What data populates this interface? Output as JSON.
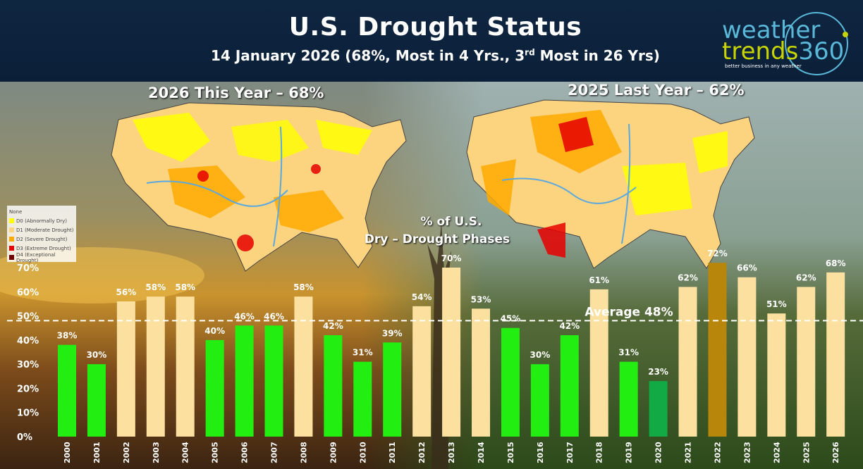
{
  "header": {
    "title": "U.S. Drought Status",
    "subtitle_main": "14 January 2026 (68%, Most in 4 Yrs., 3",
    "subtitle_sup": "rd",
    "subtitle_end": " Most in 26 Yrs)"
  },
  "logo": {
    "line1": "weather",
    "line2": "trends",
    "line2_num": "360",
    "tagline": "better business in any weather"
  },
  "maps": {
    "left_title": "2026 This Year – 68%",
    "right_title": "2025 Last Year – 62%"
  },
  "legend": [
    {
      "label": "None",
      "color": "#ffffff"
    },
    {
      "label": "D0 (Abnormally Dry)",
      "color": "#ffff00"
    },
    {
      "label": "D1 (Moderate Drought)",
      "color": "#fcd37f"
    },
    {
      "label": "D2 (Severe Drought)",
      "color": "#ffaa00"
    },
    {
      "label": "D3 (Extreme Drought)",
      "color": "#e60000"
    },
    {
      "label": "D4 (Exceptional Drought)",
      "color": "#730000"
    }
  ],
  "chart_overlay": {
    "line1": "% of U.S.",
    "line2": "Dry – Drought Phases",
    "average_label": "Average 48%"
  },
  "colors": {
    "above_avg": "#fbe0a0",
    "below_avg": "#22ee11",
    "record_low": "#11aa44",
    "record_high": "#b8860b"
  },
  "chart_data": {
    "type": "bar",
    "title": "% of U.S. Dry – Drought Phases",
    "categories": [
      "2000",
      "2001",
      "2002",
      "2003",
      "2004",
      "2005",
      "2006",
      "2007",
      "2008",
      "2009",
      "2010",
      "2011",
      "2012",
      "2013",
      "2014",
      "2015",
      "2016",
      "2017",
      "2018",
      "2019",
      "2020",
      "2021",
      "2022",
      "2023",
      "2024",
      "2025",
      "2026"
    ],
    "values": [
      38,
      30,
      56,
      58,
      58,
      40,
      46,
      46,
      58,
      42,
      31,
      39,
      54,
      70,
      53,
      45,
      30,
      42,
      61,
      31,
      23,
      62,
      72,
      66,
      51,
      62,
      68
    ],
    "labels": [
      "38%",
      "30%",
      "56%",
      "58%",
      "58%",
      "40%",
      "46%",
      "46%",
      "58%",
      "42%",
      "31%",
      "39%",
      "54%",
      "70%",
      "53%",
      "45%",
      "30%",
      "42%",
      "61%",
      "31%",
      "23%",
      "62%",
      "72%",
      "66%",
      "51%",
      "62%",
      "68%"
    ],
    "bar_colors": [
      "below_avg",
      "below_avg",
      "above_avg",
      "above_avg",
      "above_avg",
      "below_avg",
      "below_avg",
      "below_avg",
      "above_avg",
      "below_avg",
      "below_avg",
      "below_avg",
      "above_avg",
      "above_avg",
      "above_avg",
      "below_avg",
      "below_avg",
      "below_avg",
      "above_avg",
      "below_avg",
      "record_low",
      "above_avg",
      "record_high",
      "above_avg",
      "above_avg",
      "above_avg",
      "above_avg"
    ],
    "average": 48,
    "ylim": [
      0,
      70
    ],
    "yticks": [
      "0%",
      "10%",
      "20%",
      "30%",
      "40%",
      "50%",
      "60%",
      "70%"
    ],
    "ytick_values": [
      0,
      10,
      20,
      30,
      40,
      50,
      60,
      70
    ],
    "xlabel": "",
    "ylabel": ""
  }
}
